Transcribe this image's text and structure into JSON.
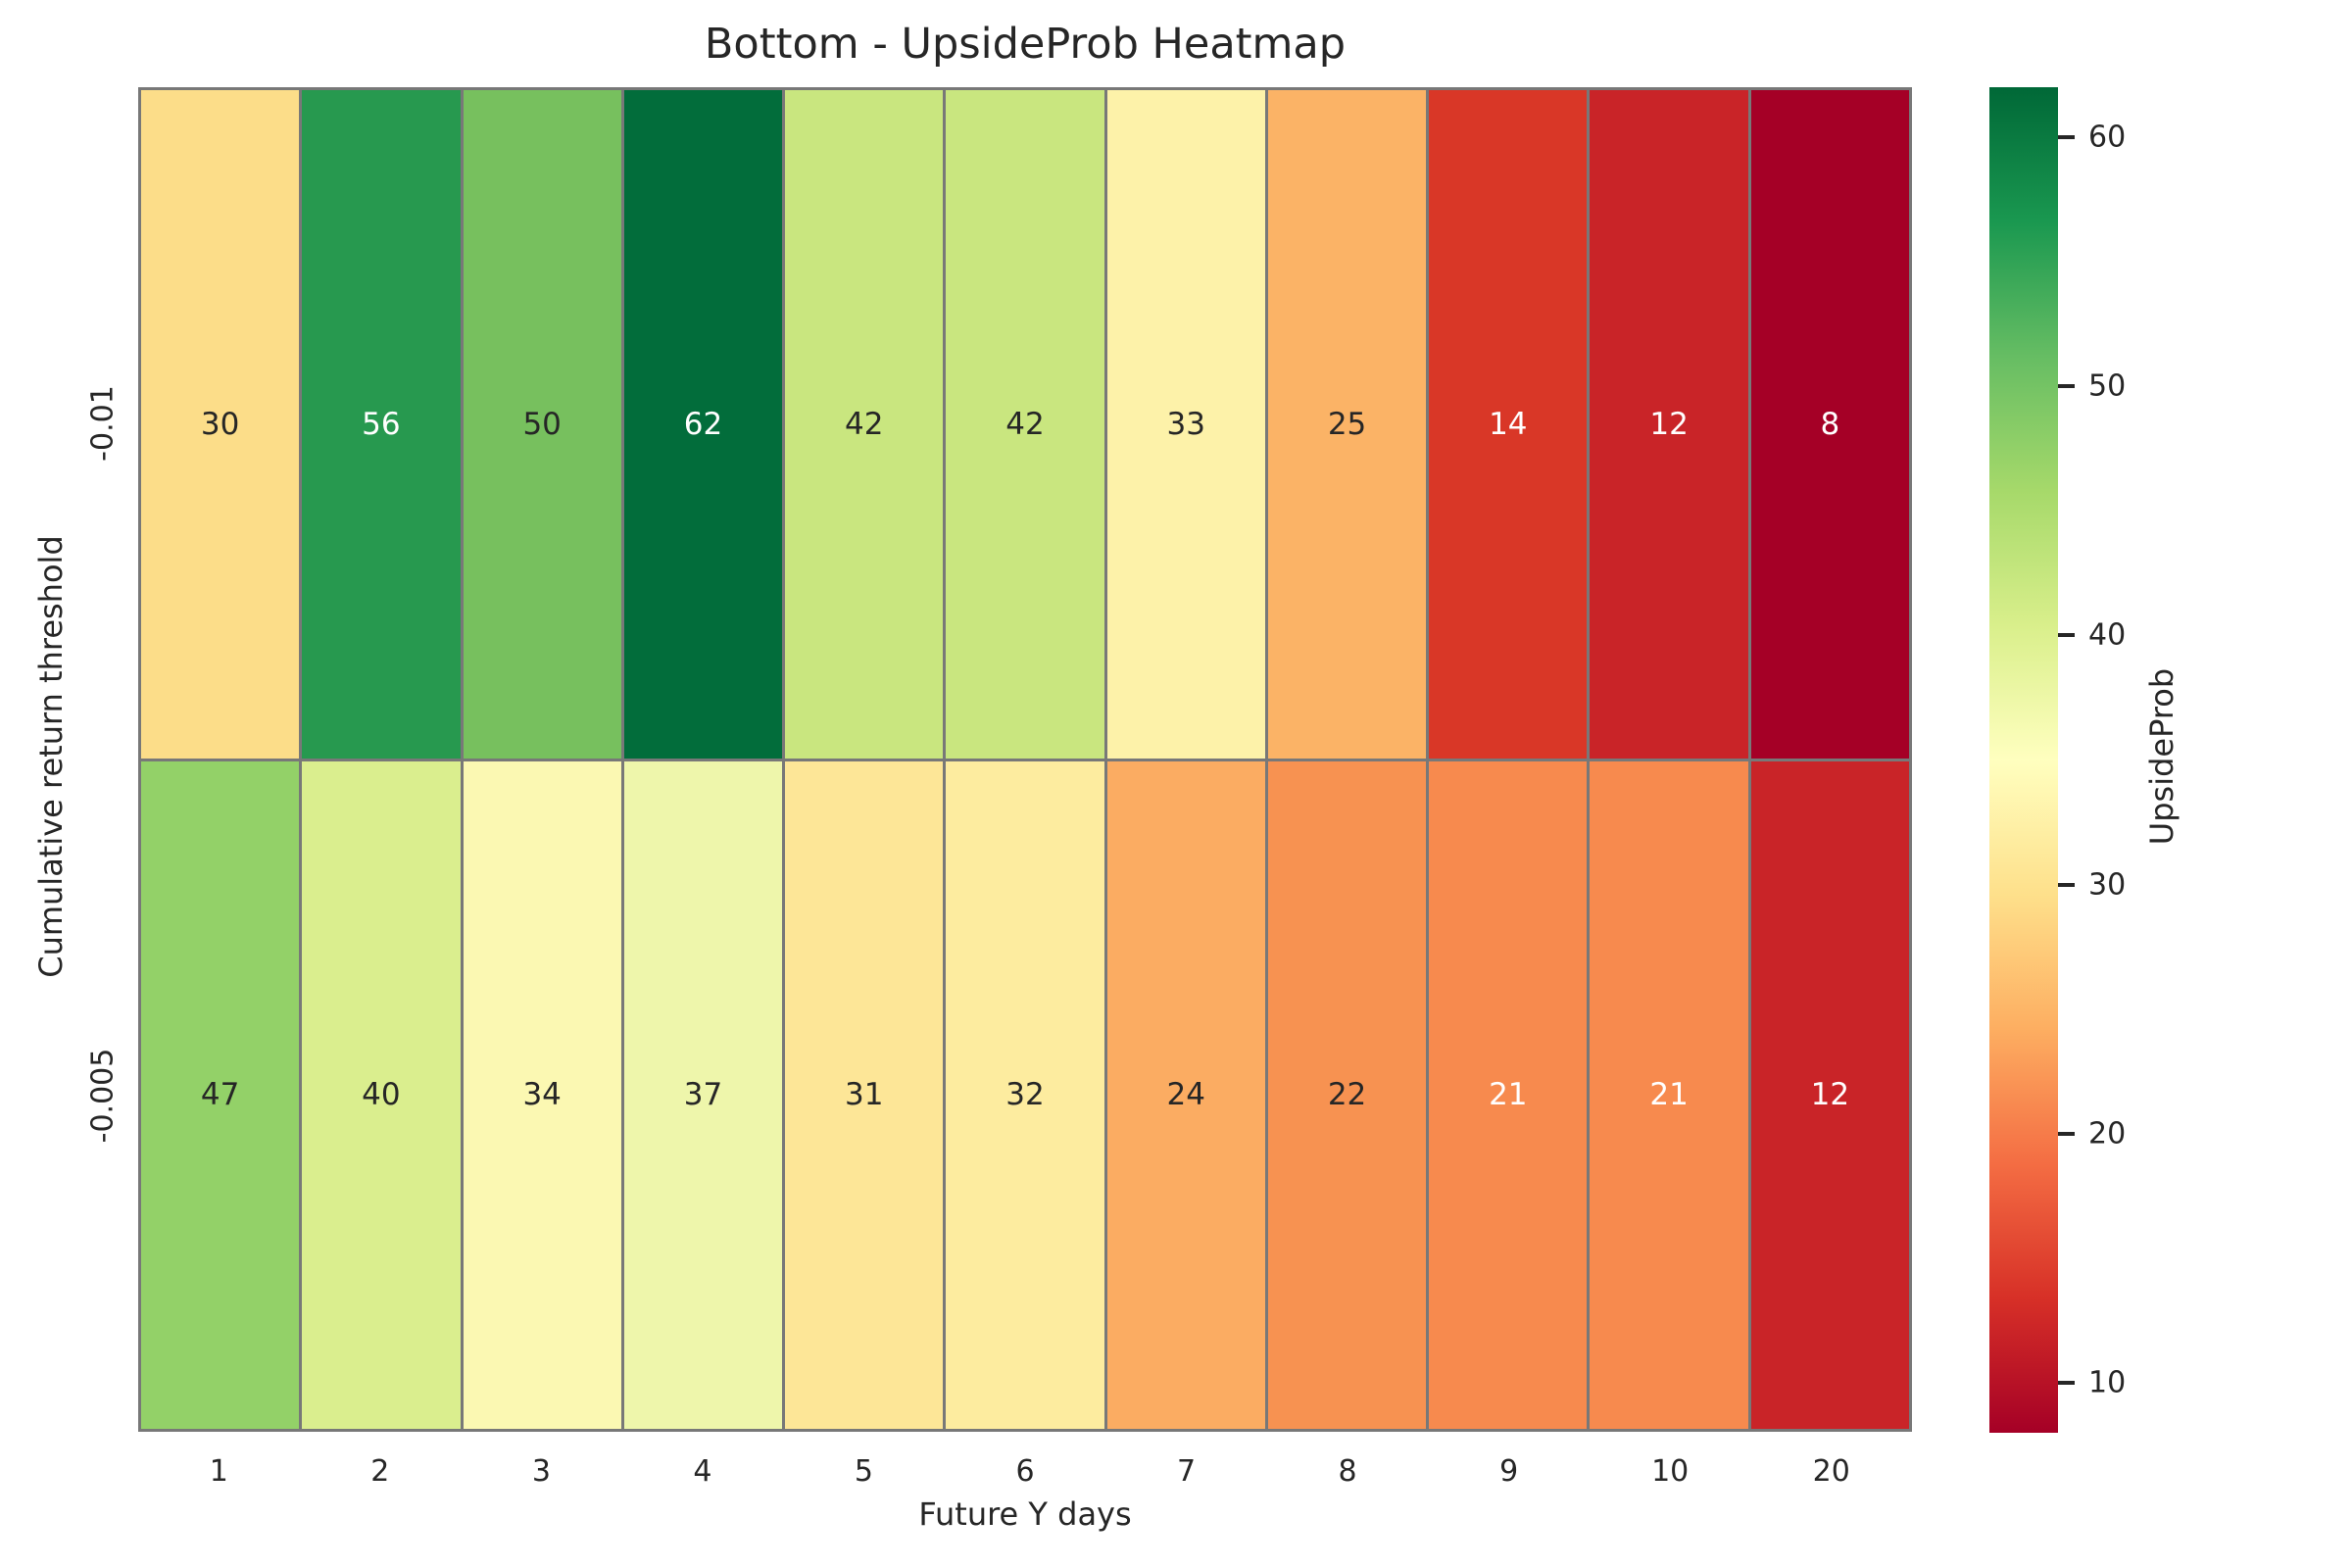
{
  "chart_data": {
    "type": "heatmap",
    "title": "Bottom - UpsideProb Heatmap",
    "xlabel": "Future Y days",
    "ylabel": "Cumulative return threshold",
    "x_categories": [
      "1",
      "2",
      "3",
      "4",
      "5",
      "6",
      "7",
      "8",
      "9",
      "10",
      "20"
    ],
    "y_categories": [
      "-0.01",
      "-0.005"
    ],
    "values": [
      [
        30,
        56,
        50,
        62,
        42,
        42,
        33,
        25,
        14,
        12,
        8
      ],
      [
        47,
        40,
        34,
        37,
        31,
        32,
        24,
        22,
        21,
        21,
        12
      ]
    ],
    "cell_colors": [
      [
        "#fcdd89",
        "#27994f",
        "#77c05e",
        "#026d3b",
        "#c9e67f",
        "#c9e67f",
        "#fdf2a9",
        "#fbb366",
        "#d93727",
        "#c92428",
        "#a50026"
      ],
      [
        "#93d168",
        "#daee8e",
        "#fbf8b2",
        "#eef6ab",
        "#fde697",
        "#fdec9f",
        "#fbac62",
        "#f79251",
        "#f78a4e",
        "#f78a4e",
        "#c92428"
      ]
    ],
    "cell_text_colors": [
      [
        "#262626",
        "#ffffff",
        "#262626",
        "#ffffff",
        "#262626",
        "#262626",
        "#262626",
        "#262626",
        "#ffffff",
        "#ffffff",
        "#ffffff"
      ],
      [
        "#262626",
        "#262626",
        "#262626",
        "#262626",
        "#262626",
        "#262626",
        "#262626",
        "#262626",
        "#ffffff",
        "#ffffff",
        "#ffffff"
      ]
    ],
    "grid_line_color": "#787878",
    "colormap": "RdYlGn",
    "legend_position": "right",
    "grid": false,
    "colorbar": {
      "label": "UpsideProb",
      "vmin": 8,
      "vmax": 62,
      "ticks": [
        60,
        50,
        40,
        30,
        20,
        10
      ],
      "gradient_stops": [
        {
          "pos": 0,
          "color": "#006837"
        },
        {
          "pos": 10,
          "color": "#1a9850"
        },
        {
          "pos": 20,
          "color": "#66bd63"
        },
        {
          "pos": 30,
          "color": "#a6d96a"
        },
        {
          "pos": 40,
          "color": "#d9ef8b"
        },
        {
          "pos": 50,
          "color": "#ffffbf"
        },
        {
          "pos": 60,
          "color": "#fee08b"
        },
        {
          "pos": 70,
          "color": "#fdae61"
        },
        {
          "pos": 80,
          "color": "#f46d43"
        },
        {
          "pos": 90,
          "color": "#d73027"
        },
        {
          "pos": 100,
          "color": "#a50026"
        }
      ]
    }
  }
}
